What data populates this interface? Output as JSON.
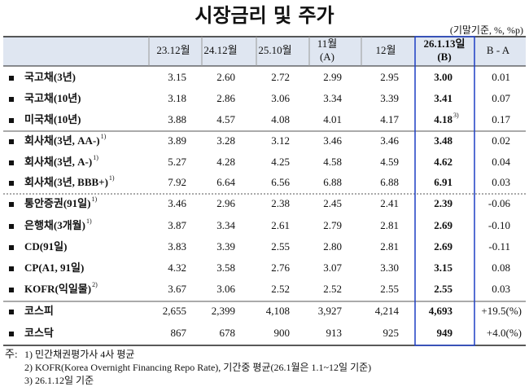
{
  "header": {
    "title": "시장금리 및 주가",
    "unit": "(기말기준, %, %p)"
  },
  "table": {
    "columns": [
      [
        "23.12월"
      ],
      [
        "24.12월"
      ],
      [
        "25.10월"
      ],
      [
        "11월",
        "(A)"
      ],
      [
        "12월"
      ],
      [
        "26.1.13일",
        "(B)"
      ],
      [
        "B - A"
      ]
    ],
    "rows": [
      {
        "label": "국고채(3년)",
        "values": [
          "3.15",
          "2.60",
          "2.72",
          "2.99",
          "2.95",
          "3.00",
          "0.01"
        ]
      },
      {
        "label": "국고채(10년)",
        "values": [
          "3.18",
          "2.86",
          "3.06",
          "3.34",
          "3.39",
          "3.41",
          "0.07"
        ]
      },
      {
        "label": "미국채(10년)",
        "values": [
          "3.88",
          "4.57",
          "4.08",
          "4.01",
          "4.17",
          "4.18",
          "0.17"
        ],
        "b_note": "3)"
      },
      {
        "label": "회사채(3년, AA-)",
        "label_note": "1)",
        "values": [
          "3.89",
          "3.28",
          "3.12",
          "3.46",
          "3.46",
          "3.48",
          "0.02"
        ]
      },
      {
        "label": "회사채(3년, A-)",
        "label_note": "1)",
        "values": [
          "5.27",
          "4.28",
          "4.25",
          "4.58",
          "4.59",
          "4.62",
          "0.04"
        ]
      },
      {
        "label": "회사채(3년, BBB+)",
        "label_note": "1)",
        "values": [
          "7.92",
          "6.64",
          "6.56",
          "6.88",
          "6.88",
          "6.91",
          "0.03"
        ]
      },
      {
        "label": "통안증권(91일)",
        "label_note": "1)",
        "values": [
          "3.46",
          "2.96",
          "2.38",
          "2.45",
          "2.41",
          "2.39",
          "-0.06"
        ]
      },
      {
        "label": "은행채(3개월)",
        "label_note": "1)",
        "values": [
          "3.87",
          "3.34",
          "2.61",
          "2.79",
          "2.81",
          "2.69",
          "-0.10"
        ]
      },
      {
        "label": "CD(91일)",
        "values": [
          "3.83",
          "3.39",
          "2.55",
          "2.80",
          "2.81",
          "2.69",
          "-0.11"
        ]
      },
      {
        "label": "CP(A1, 91일)",
        "values": [
          "4.32",
          "3.58",
          "2.76",
          "3.07",
          "3.30",
          "3.15",
          "0.08"
        ]
      },
      {
        "label": "KOFR(익일물)",
        "label_note": "2)",
        "values": [
          "3.67",
          "3.06",
          "2.52",
          "2.52",
          "2.55",
          "2.55",
          "0.03"
        ]
      },
      {
        "label": "코스피",
        "values": [
          "2,655",
          "2,399",
          "4,108",
          "3,927",
          "4,214",
          "4,693",
          "+19.5(%)"
        ]
      },
      {
        "label": "코스닥",
        "values": [
          "867",
          "678",
          "900",
          "913",
          "925",
          "949",
          "+4.0(%)"
        ]
      }
    ]
  },
  "notes": {
    "prefix": "주:",
    "items": [
      "1) 민간채권평가사 4사 평균",
      "2) KOFR(Korea Overnight Financing Repo Rate), 기간중 평균(26.1월은 1.1~12일 기준)",
      "3) 26.1.12일 기준"
    ]
  }
}
